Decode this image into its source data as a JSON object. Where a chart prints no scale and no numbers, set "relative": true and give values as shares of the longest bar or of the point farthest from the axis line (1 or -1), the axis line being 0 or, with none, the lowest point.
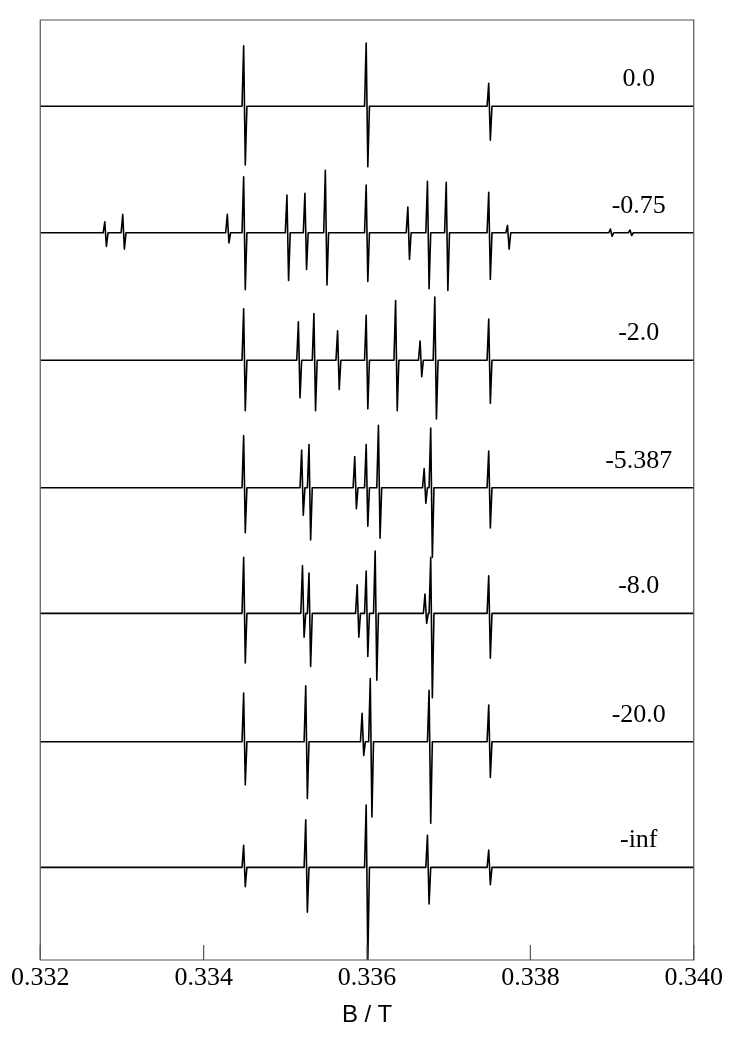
{
  "chart_data": {
    "type": "line",
    "xlabel": "B / T",
    "relative": true,
    "xlim": [
      0.332,
      0.34
    ],
    "xticks": [
      0.332,
      0.334,
      0.336,
      0.338,
      {
        "value": 0.34,
        "label": "0.340"
      }
    ],
    "grid": false,
    "legend": false,
    "marker": "none",
    "line_style": "solid",
    "series": [
      {
        "name": "0.0",
        "color": "#000000",
        "x": [
          0.332,
          0.33447,
          0.33449,
          0.33451,
          0.33453,
          0.33597,
          0.33599,
          0.33601,
          0.33603,
          0.33747,
          0.33749,
          0.33751,
          0.33753,
          0.34
        ],
        "values": [
          0.931,
          0.931,
          0.997,
          0.867,
          0.931,
          0.931,
          1,
          0.865,
          0.931,
          0.931,
          0.956,
          0.894,
          0.931,
          0.931
        ]
      },
      {
        "name": "-0.75",
        "color": "#000000",
        "x": [
          0.332,
          0.33277,
          0.33279,
          0.33281,
          0.33283,
          0.33299,
          0.33301,
          0.33303,
          0.33305,
          0.33427,
          0.33429,
          0.33431,
          0.33433,
          0.33447,
          0.33449,
          0.33451,
          0.33453,
          0.335,
          0.33502,
          0.33504,
          0.33506,
          0.33522,
          0.33524,
          0.33526,
          0.33528,
          0.33547,
          0.33549,
          0.33551,
          0.33553,
          0.33597,
          0.33599,
          0.33601,
          0.33603,
          0.33648,
          0.3365,
          0.33652,
          0.33654,
          0.33672,
          0.33674,
          0.33676,
          0.33678,
          0.33695,
          0.33697,
          0.33699,
          0.33701,
          0.33747,
          0.33749,
          0.33751,
          0.33753,
          0.3377,
          0.33772,
          0.33774,
          0.33776,
          0.33896,
          0.33898,
          0.339,
          0.33902,
          0.3392,
          0.33922,
          0.33924,
          0.33926,
          0.34
        ],
        "values": [
          0.793,
          0.793,
          0.805,
          0.778,
          0.793,
          0.793,
          0.813,
          0.775,
          0.793,
          0.793,
          0.813,
          0.782,
          0.793,
          0.793,
          0.854,
          0.731,
          0.793,
          0.793,
          0.834,
          0.741,
          0.793,
          0.793,
          0.836,
          0.753,
          0.793,
          0.793,
          0.861,
          0.736,
          0.793,
          0.793,
          0.845,
          0.74,
          0.793,
          0.793,
          0.821,
          0.764,
          0.793,
          0.793,
          0.849,
          0.732,
          0.793,
          0.793,
          0.848,
          0.73,
          0.793,
          0.793,
          0.837,
          0.742,
          0.793,
          0.793,
          0.801,
          0.775,
          0.793,
          0.793,
          0.797,
          0.789,
          0.793,
          0.793,
          0.796,
          0.79,
          0.793,
          0.793
        ]
      },
      {
        "name": "-2.0",
        "color": "#000000",
        "x": [
          0.332,
          0.33447,
          0.33449,
          0.33451,
          0.33453,
          0.33514,
          0.33516,
          0.33518,
          0.3352,
          0.33533,
          0.33535,
          0.33537,
          0.33539,
          0.33562,
          0.33564,
          0.33566,
          0.33568,
          0.33597,
          0.33599,
          0.33601,
          0.33603,
          0.33633,
          0.33635,
          0.33637,
          0.33639,
          0.33663,
          0.33665,
          0.33667,
          0.33669,
          0.33681,
          0.33683,
          0.33685,
          0.33687,
          0.33747,
          0.33749,
          0.33751,
          0.33753,
          0.34
        ],
        "values": [
          0.654,
          0.654,
          0.71,
          0.599,
          0.654,
          0.654,
          0.696,
          0.613,
          0.654,
          0.654,
          0.705,
          0.599,
          0.654,
          0.654,
          0.686,
          0.622,
          0.654,
          0.654,
          0.703,
          0.601,
          0.654,
          0.654,
          0.719,
          0.599,
          0.654,
          0.654,
          0.675,
          0.636,
          0.654,
          0.654,
          0.723,
          0.59,
          0.654,
          0.654,
          0.699,
          0.607,
          0.654,
          0.654
        ]
      },
      {
        "name": "-5.387",
        "color": "#000000",
        "x": [
          0.332,
          0.33447,
          0.33449,
          0.33451,
          0.33453,
          0.33518,
          0.3352,
          0.33522,
          0.33524,
          0.33527,
          0.33529,
          0.33531,
          0.33533,
          0.33583,
          0.33585,
          0.33587,
          0.33589,
          0.33597,
          0.33599,
          0.33601,
          0.33603,
          0.33612,
          0.33614,
          0.33616,
          0.33618,
          0.33668,
          0.3367,
          0.33672,
          0.33674,
          0.33676,
          0.33678,
          0.3368,
          0.33682,
          0.33747,
          0.33749,
          0.33751,
          0.33753,
          0.34
        ],
        "values": [
          0.515,
          0.515,
          0.572,
          0.466,
          0.515,
          0.515,
          0.556,
          0.485,
          0.515,
          0.515,
          0.562,
          0.458,
          0.515,
          0.515,
          0.549,
          0.492,
          0.515,
          0.515,
          0.562,
          0.473,
          0.515,
          0.515,
          0.583,
          0.46,
          0.515,
          0.515,
          0.536,
          0.498,
          0.515,
          0.515,
          0.58,
          0.439,
          0.515,
          0.515,
          0.555,
          0.471,
          0.515,
          0.515
        ]
      },
      {
        "name": "-8.0",
        "color": "#000000",
        "x": [
          0.332,
          0.33447,
          0.33449,
          0.33451,
          0.33453,
          0.33519,
          0.33521,
          0.33523,
          0.33525,
          0.33527,
          0.33529,
          0.33531,
          0.33533,
          0.33586,
          0.33588,
          0.3359,
          0.33592,
          0.33597,
          0.33599,
          0.33601,
          0.33603,
          0.33608,
          0.3361,
          0.33612,
          0.33614,
          0.33669,
          0.33671,
          0.33673,
          0.33675,
          0.33676,
          0.33678,
          0.3368,
          0.33682,
          0.33747,
          0.33749,
          0.33751,
          0.33753,
          0.34
        ],
        "values": [
          0.378,
          0.378,
          0.439,
          0.324,
          0.378,
          0.378,
          0.43,
          0.352,
          0.378,
          0.378,
          0.422,
          0.32,
          0.378,
          0.378,
          0.409,
          0.352,
          0.378,
          0.378,
          0.424,
          0.331,
          0.378,
          0.378,
          0.446,
          0.305,
          0.378,
          0.378,
          0.399,
          0.367,
          0.378,
          0.378,
          0.439,
          0.286,
          0.378,
          0.378,
          0.419,
          0.329,
          0.378,
          0.378
        ]
      },
      {
        "name": "-20.0",
        "color": "#000000",
        "x": [
          0.332,
          0.33447,
          0.33449,
          0.33451,
          0.33453,
          0.33523,
          0.33525,
          0.33527,
          0.33529,
          0.33592,
          0.33594,
          0.33596,
          0.33598,
          0.33602,
          0.33604,
          0.33606,
          0.33608,
          0.33674,
          0.33676,
          0.33678,
          0.3368,
          0.33747,
          0.33749,
          0.33751,
          0.33753,
          0.34
        ],
        "values": [
          0.238,
          0.238,
          0.291,
          0.191,
          0.238,
          0.238,
          0.299,
          0.176,
          0.238,
          0.238,
          0.269,
          0.223,
          0.238,
          0.238,
          0.307,
          0.156,
          0.238,
          0.238,
          0.294,
          0.149,
          0.238,
          0.238,
          0.278,
          0.199,
          0.238,
          0.238
        ]
      },
      {
        "name": "-inf",
        "color": "#000000",
        "x": [
          0.332,
          0.33447,
          0.33449,
          0.33451,
          0.33453,
          0.33523,
          0.33525,
          0.33527,
          0.33529,
          0.33597,
          0.33599,
          0.33601,
          0.33603,
          0.33672,
          0.33674,
          0.33676,
          0.33678,
          0.33747,
          0.33749,
          0.33751,
          0.33753,
          0.34
        ],
        "values": [
          0.101,
          0.101,
          0.125,
          0.08,
          0.101,
          0.101,
          0.153,
          0.052,
          0.101,
          0.101,
          0.169,
          0,
          0.101,
          0.101,
          0.136,
          0.061,
          0.101,
          0.101,
          0.12,
          0.082,
          0.101,
          0.101
        ]
      }
    ]
  }
}
